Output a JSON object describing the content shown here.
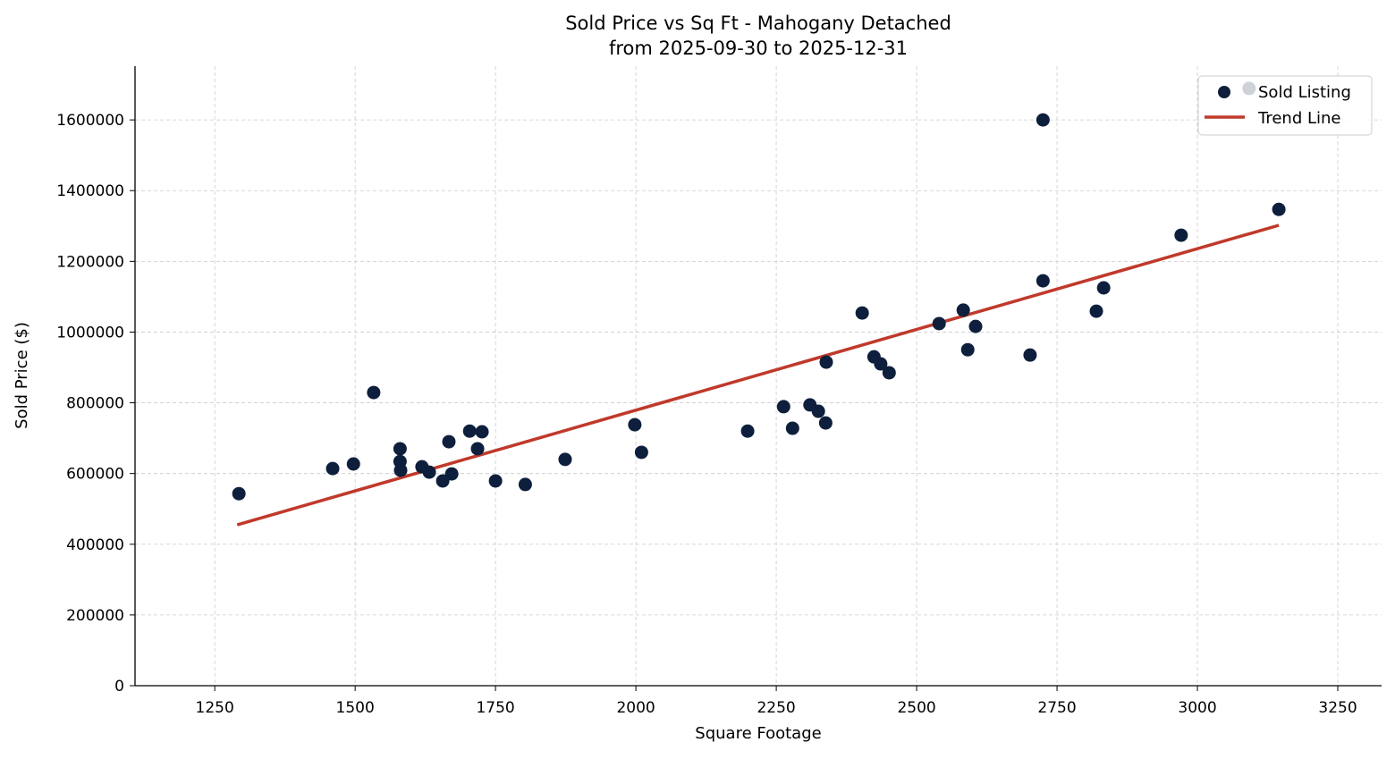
{
  "chart_data": {
    "type": "scatter",
    "title": "Sold Price vs Sq Ft - Mahogany Detached",
    "subtitle": "from 2025-09-30 to 2025-12-31",
    "xlabel": "Square Footage",
    "ylabel": "Sold Price ($)",
    "xlim": [
      1108,
      3328
    ],
    "ylim": [
      0,
      1752000
    ],
    "xticks": [
      1250,
      1500,
      1750,
      2000,
      2250,
      2500,
      2750,
      3000,
      3250
    ],
    "yticks": [
      0,
      200000,
      400000,
      600000,
      800000,
      1000000,
      1200000,
      1400000,
      1600000
    ],
    "grid": true,
    "legend_position": "top-right",
    "colors": {
      "points": "#0d1f3c",
      "trend": "#c0392b",
      "grid": "#cccccc"
    },
    "series": [
      {
        "name": "Sold Listing",
        "type": "scatter",
        "points": [
          [
            1293,
            543000
          ],
          [
            1460,
            614000
          ],
          [
            1497,
            627000
          ],
          [
            1533,
            829000
          ],
          [
            1580,
            670000
          ],
          [
            1580,
            634000
          ],
          [
            1581,
            609000
          ],
          [
            1619,
            619000
          ],
          [
            1632,
            604000
          ],
          [
            1656,
            579000
          ],
          [
            1667,
            690000
          ],
          [
            1672,
            599000
          ],
          [
            1704,
            720000
          ],
          [
            1726,
            718000
          ],
          [
            1718,
            670000
          ],
          [
            1750,
            579000
          ],
          [
            1803,
            569000
          ],
          [
            1874,
            640000
          ],
          [
            1998,
            738000
          ],
          [
            2010,
            660000
          ],
          [
            2199,
            720000
          ],
          [
            2263,
            789000
          ],
          [
            2279,
            728000
          ],
          [
            2310,
            794000
          ],
          [
            2325,
            776000
          ],
          [
            2338,
            743000
          ],
          [
            2339,
            915000
          ],
          [
            2403,
            1054000
          ],
          [
            2424,
            930000
          ],
          [
            2436,
            910000
          ],
          [
            2451,
            885000
          ],
          [
            2540,
            1024000
          ],
          [
            2583,
            1062000
          ],
          [
            2591,
            950000
          ],
          [
            2605,
            1016000
          ],
          [
            2702,
            935000
          ],
          [
            2725,
            1600000
          ],
          [
            2725,
            1145000
          ],
          [
            2820,
            1059000
          ],
          [
            2833,
            1125000
          ],
          [
            2971,
            1274000
          ],
          [
            3092,
            1689000
          ],
          [
            3145,
            1347000
          ]
        ]
      },
      {
        "name": "Trend Line",
        "type": "line",
        "points": [
          [
            1290,
            455000
          ],
          [
            3145,
            1302000
          ]
        ]
      }
    ]
  }
}
